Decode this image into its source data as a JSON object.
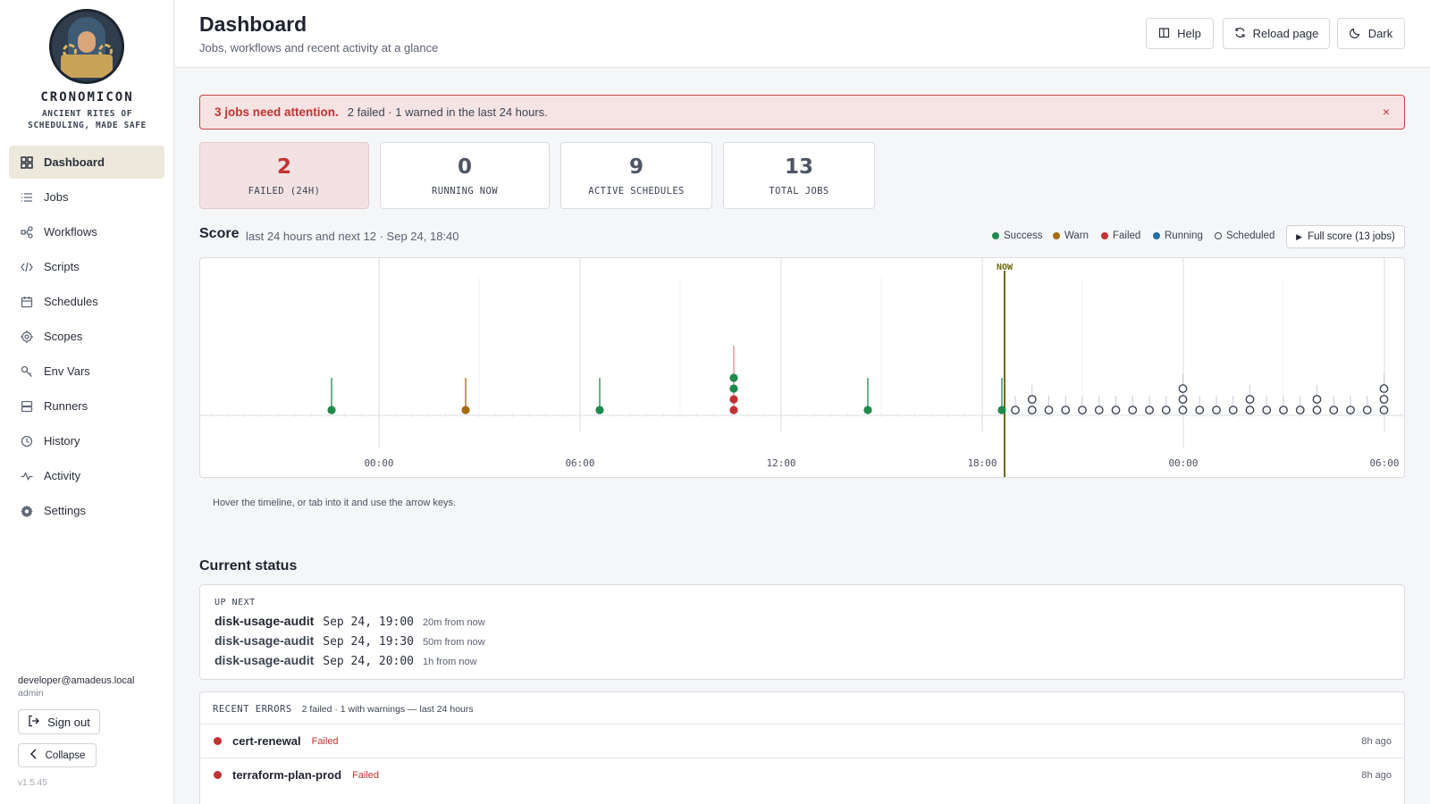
{
  "brand": {
    "name": "CRONOMICON",
    "tagline": "ANCIENT RITES OF SCHEDULING, MADE SAFE"
  },
  "nav": [
    {
      "label": "Dashboard",
      "icon": "grid-icon",
      "active": true
    },
    {
      "label": "Jobs",
      "icon": "list-icon"
    },
    {
      "label": "Workflows",
      "icon": "workflow-icon"
    },
    {
      "label": "Scripts",
      "icon": "code-icon"
    },
    {
      "label": "Schedules",
      "icon": "calendar-icon"
    },
    {
      "label": "Scopes",
      "icon": "target-icon"
    },
    {
      "label": "Env Vars",
      "icon": "key-icon"
    },
    {
      "label": "Runners",
      "icon": "server-icon"
    },
    {
      "label": "History",
      "icon": "clock-icon"
    },
    {
      "label": "Activity",
      "icon": "pulse-icon"
    },
    {
      "label": "Settings",
      "icon": "gear-icon"
    }
  ],
  "user": {
    "email": "developer@amadeus.local",
    "role": "admin",
    "sign_out": "Sign out",
    "collapse": "Collapse",
    "version": "v1.5.45"
  },
  "header": {
    "title": "Dashboard",
    "subtitle": "Jobs, workflows and recent activity at a glance",
    "help": "Help",
    "reload": "Reload page",
    "theme": "Dark"
  },
  "alert": {
    "title": "3 jobs need attention.",
    "detail": "2 failed · 1 warned in the last 24 hours.",
    "close": "×"
  },
  "stats": [
    {
      "value": "2",
      "label": "FAILED (24H)"
    },
    {
      "value": "0",
      "label": "RUNNING NOW"
    },
    {
      "value": "9",
      "label": "ACTIVE SCHEDULES"
    },
    {
      "value": "13",
      "label": "TOTAL JOBS"
    }
  ],
  "score": {
    "title": "Score",
    "subtitle": "last 24 hours and next 12 · Sep 24, 18:40",
    "legend": [
      {
        "label": "Success",
        "color": "#1e8a4c"
      },
      {
        "label": "Warn",
        "color": "#a86a14"
      },
      {
        "label": "Failed",
        "color": "#c23232"
      },
      {
        "label": "Running",
        "color": "#1f6fa0"
      },
      {
        "label": "Scheduled",
        "color": "#ffffff"
      }
    ],
    "full_score": "Full score (13 jobs)",
    "now_label": "NOW",
    "axis_labels": [
      "00:00",
      "06:00",
      "12:00",
      "18:00",
      "00:00",
      "06:00"
    ],
    "hint": "Hover the timeline, or tab into it and use the arrow keys."
  },
  "current_status": {
    "title": "Current status",
    "up_next_label": "UP NEXT",
    "up_next": [
      {
        "job": "disk-usage-audit",
        "time": "Sep 24, 19:00",
        "relative": "20m from now"
      },
      {
        "job": "disk-usage-audit",
        "time": "Sep 24, 19:30",
        "relative": "50m from now"
      },
      {
        "job": "disk-usage-audit",
        "time": "Sep 24, 20:00",
        "relative": "1h from now"
      }
    ]
  },
  "recent_errors": {
    "label": "RECENT ERRORS",
    "summary": "2 failed · 1 with warnings — last 24 hours",
    "rows": [
      {
        "job": "cert-renewal",
        "status": "Failed",
        "ago": "8h ago"
      },
      {
        "job": "terraform-plan-prod",
        "status": "Failed",
        "ago": "8h ago"
      }
    ]
  }
}
